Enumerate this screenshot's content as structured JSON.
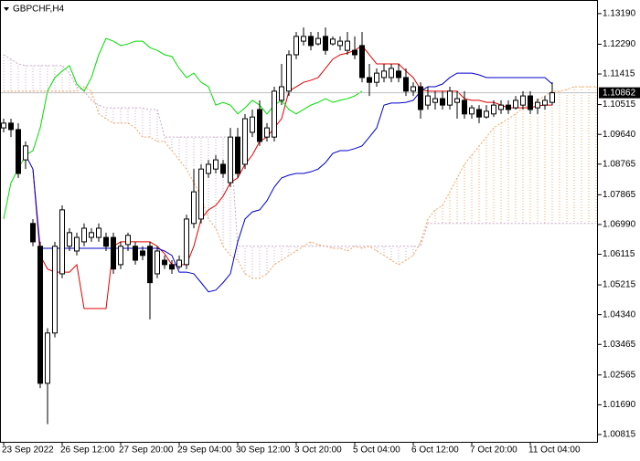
{
  "chart_data": {
    "type": "candlestick",
    "title": "GBPCHF,H4",
    "categories": [
      "23 Sep 2022",
      null,
      null,
      null,
      null,
      null,
      null,
      null,
      "26 Sep 12:00",
      null,
      null,
      null,
      null,
      null,
      null,
      null,
      "27 Sep 20:00",
      null,
      null,
      null,
      null,
      null,
      null,
      null,
      "29 Sep 04:00",
      null,
      null,
      null,
      null,
      null,
      null,
      null,
      "30 Sep 12:00",
      null,
      null,
      null,
      null,
      null,
      null,
      null,
      "3 Oct 20:00",
      null,
      null,
      null,
      null,
      null,
      null,
      null,
      "5 Oct 04:00",
      null,
      null,
      null,
      null,
      null,
      null,
      null,
      "6 Oct 12:00",
      null,
      null,
      null,
      null,
      null,
      null,
      null,
      "7 Oct 20:00",
      null,
      null,
      null,
      null,
      null,
      null,
      null,
      "11 Oct 04:00",
      null,
      null,
      null,
      null,
      null,
      null,
      null,
      null,
      null
    ],
    "open": [
      1.0983,
      1.0997,
      1.0978,
      1.0889,
      1.0702,
      1.0635,
      1.0232,
      1.038,
      1.0554,
      1.0635,
      1.0621,
      1.0648,
      1.0661,
      1.0661,
      1.0661,
      1.0661,
      1.0581,
      1.064,
      1.0635,
      1.0621,
      1.0635,
      1.0554,
      1.0594,
      1.0581,
      1.0575,
      1.0581,
      1.0702,
      1.0715,
      1.0849,
      1.0862,
      1.0876,
      1.0822,
      1.0956,
      1.0876,
      1.097,
      1.1037,
      1.0956,
      1.0956,
      1.1064,
      1.1091,
      1.1198,
      1.1238,
      1.1252,
      1.123,
      1.1252,
      1.123,
      1.1225,
      1.1211,
      1.1211,
      1.1225,
      1.1131,
      1.1117,
      1.1131,
      1.1131,
      1.115,
      1.1131,
      1.1091,
      1.1104,
      1.105,
      1.1058,
      1.1069,
      1.105,
      1.1058,
      1.1064,
      1.1024,
      1.1037,
      1.1015,
      1.1024,
      1.1037,
      1.105,
      1.1042,
      1.105,
      1.1077,
      1.1042,
      1.105,
      1.1058,
      null,
      null,
      null,
      null,
      null,
      null
    ],
    "high": [
      1.101,
      1.101,
      1.0997,
      1.0943,
      1.0715,
      1.0648,
      1.0394,
      1.0648,
      1.0755,
      1.0688,
      1.0675,
      1.0702,
      1.0688,
      1.0702,
      1.0675,
      1.0675,
      1.0648,
      1.0675,
      1.0648,
      1.0635,
      1.0648,
      1.0635,
      1.0608,
      1.0594,
      1.0608,
      1.0728,
      1.0862,
      1.0876,
      1.0889,
      1.0903,
      1.0889,
      1.0983,
      1.0983,
      1.1024,
      1.1037,
      1.1064,
      1.0997,
      1.1104,
      1.1171,
      1.1211,
      1.1265,
      1.1278,
      1.1265,
      1.1265,
      1.1278,
      1.1252,
      1.1252,
      1.1265,
      1.1252,
      1.1265,
      1.1171,
      1.1158,
      1.1171,
      1.1171,
      1.1171,
      1.1158,
      1.1117,
      1.1117,
      1.1104,
      1.1091,
      1.1091,
      1.1104,
      1.1091,
      1.1091,
      1.105,
      1.105,
      1.105,
      1.1064,
      1.1064,
      1.1064,
      1.1077,
      1.1091,
      1.1091,
      1.1069,
      1.1077,
      1.1117,
      null,
      null,
      null,
      null,
      null,
      null
    ],
    "low": [
      1.097,
      1.0956,
      1.0836,
      1.0862,
      1.0635,
      1.0218,
      1.0112,
      1.0367,
      1.0541,
      1.0621,
      1.0608,
      1.0635,
      1.0648,
      1.0648,
      1.0621,
      1.0554,
      1.0568,
      1.0621,
      1.0581,
      1.0594,
      1.042,
      1.0541,
      1.0568,
      1.0554,
      1.0568,
      1.0568,
      1.0688,
      1.0702,
      1.0836,
      1.0849,
      1.0836,
      1.0809,
      1.0836,
      1.0862,
      1.0956,
      1.093,
      1.0943,
      1.0943,
      1.105,
      1.1077,
      1.1185,
      1.1225,
      1.1211,
      1.1225,
      1.1198,
      1.1225,
      1.1211,
      1.1198,
      1.1185,
      1.1117,
      1.1077,
      1.1104,
      1.1117,
      1.1117,
      1.1117,
      1.1077,
      1.1077,
      1.101,
      1.1037,
      1.1037,
      1.1037,
      1.1037,
      1.101,
      1.101,
      1.101,
      1.0997,
      1.101,
      1.1015,
      1.1024,
      1.1024,
      1.1037,
      1.1037,
      1.1024,
      1.1024,
      1.1037,
      1.105,
      null,
      null,
      null,
      null,
      null,
      null
    ],
    "close": [
      1.0997,
      1.0978,
      1.0849,
      1.093,
      1.0648,
      1.0232,
      1.038,
      1.0635,
      1.0742,
      1.0675,
      1.0661,
      1.0688,
      1.0675,
      1.0688,
      1.0635,
      1.0568,
      1.0635,
      1.0667,
      1.0594,
      1.0608,
      1.0528,
      1.0621,
      1.0581,
      1.0568,
      1.0594,
      1.0715,
      1.0795,
      1.0862,
      1.0876,
      1.0889,
      1.0849,
      1.0956,
      1.0849,
      1.101,
      1.1015,
      1.0943,
      1.0983,
      1.1091,
      1.1104,
      1.1198,
      1.1252,
      1.1252,
      1.1225,
      1.1246,
      1.1211,
      1.1244,
      1.1238,
      1.1238,
      1.1198,
      1.1131,
      1.1117,
      1.1144,
      1.115,
      1.1158,
      1.1131,
      1.1091,
      1.1104,
      1.1037,
      1.1077,
      1.1069,
      1.105,
      1.1091,
      1.1069,
      1.1024,
      1.1042,
      1.1015,
      1.1032,
      1.105,
      1.105,
      1.1037,
      1.1064,
      1.1077,
      1.1037,
      1.1058,
      1.1064,
      1.10862,
      null,
      null,
      null,
      null,
      null,
      null
    ],
    "up_color": "#ffffff",
    "down_color": "#000000",
    "series": [
      {
        "color": "#e00000",
        "values": [
          null,
          null,
          null,
          null,
          1.0862,
          1.0608,
          1.0568,
          1.0559,
          1.0559,
          1.0559,
          1.0581,
          1.0452,
          1.0452,
          1.0452,
          1.0452,
          1.0635,
          1.0648,
          1.0648,
          1.0648,
          1.0648,
          1.0648,
          1.0635,
          1.0613,
          1.0581,
          1.0581,
          1.0581,
          1.0635,
          1.0715,
          1.0742,
          1.0755,
          1.0782,
          1.0822,
          1.0836,
          1.0876,
          1.0903,
          1.0943,
          1.0956,
          1.0983,
          1.101,
          1.1091,
          1.1104,
          1.1117,
          1.1123,
          1.1131,
          1.1158,
          1.1185,
          1.1198,
          1.1203,
          1.1211,
          1.1225,
          1.1198,
          1.1171,
          1.1171,
          1.1171,
          1.1171,
          1.115,
          1.1131,
          1.1096,
          1.1091,
          1.1091,
          1.1091,
          1.1091,
          1.1091,
          1.1069,
          1.1064,
          1.1064,
          1.1058,
          1.1058,
          1.105,
          1.1042,
          1.1042,
          1.1042,
          1.1042,
          1.1048,
          1.105,
          1.105,
          null,
          null,
          null,
          null,
          null,
          null
        ]
      },
      {
        "color": "#0000cc",
        "values": [
          null,
          null,
          null,
          1.0903,
          1.0862,
          1.0629,
          1.0629,
          1.0629,
          1.0629,
          1.0629,
          1.0629,
          1.0629,
          1.0629,
          1.0629,
          1.0629,
          1.0629,
          1.0629,
          1.0629,
          1.0629,
          1.0629,
          1.0629,
          1.0629,
          1.0621,
          1.0608,
          1.0559,
          1.0559,
          1.0554,
          1.0528,
          1.0501,
          1.0506,
          1.0528,
          1.0554,
          1.0648,
          1.0715,
          1.0736,
          1.0742,
          1.0769,
          1.0809,
          1.0836,
          1.0844,
          1.0849,
          1.0849,
          1.0854,
          1.0862,
          1.0881,
          1.0908,
          1.0916,
          1.0916,
          1.0922,
          1.093,
          1.0956,
          1.0983,
          1.105,
          1.1056,
          1.1056,
          1.1058,
          1.1064,
          1.1091,
          1.1104,
          1.1104,
          1.1112,
          1.1131,
          1.1144,
          1.1144,
          1.1144,
          1.1139,
          1.1131,
          1.1131,
          1.1131,
          1.1131,
          1.1131,
          1.1131,
          1.1131,
          1.1131,
          1.1131,
          1.1112,
          null,
          null,
          null,
          null,
          null,
          null
        ]
      },
      {
        "color": "#00dd00",
        "values": [
          1.0715,
          1.0822,
          1.0862,
          1.0903,
          1.0916,
          1.0983,
          1.1091,
          1.1131,
          1.115,
          1.1166,
          1.1112,
          1.1091,
          1.1131,
          1.1198,
          1.1246,
          1.1238,
          1.1225,
          1.123,
          1.1238,
          1.1238,
          1.1219,
          1.1211,
          1.1198,
          1.1193,
          1.1158,
          1.1131,
          1.1144,
          1.1117,
          1.1104,
          1.105,
          1.1058,
          1.105,
          1.1024,
          1.1042,
          1.1064,
          1.105,
          1.1024,
          1.105,
          1.1064,
          1.1037,
          1.1024,
          1.1037,
          1.105,
          1.1058,
          1.1069,
          1.1058,
          1.1064,
          1.1069,
          1.1077,
          1.1091,
          null,
          null,
          null,
          null,
          null,
          null,
          null,
          null,
          null,
          null,
          null,
          null,
          null,
          null,
          null,
          null,
          null,
          null,
          null,
          null,
          null,
          null,
          null,
          null,
          null,
          null,
          null,
          null,
          null,
          null,
          null,
          null
        ]
      }
    ],
    "cloud": {
      "span_a": {
        "color": "#f4a460",
        "values": [
          1.1091,
          1.1091,
          1.1091,
          1.1091,
          1.1091,
          1.1091,
          1.1091,
          1.1091,
          1.1091,
          1.1091,
          1.1091,
          1.1104,
          1.1091,
          1.1024,
          1.101,
          1.0997,
          1.0997,
          1.0997,
          1.0983,
          1.0956,
          1.0956,
          1.0943,
          1.0943,
          1.0916,
          1.0889,
          1.0862,
          1.0822,
          1.0782,
          1.0715,
          1.0688,
          1.0635,
          1.0608,
          1.0594,
          1.0554,
          1.0541,
          1.0541,
          1.0554,
          1.0581,
          1.0594,
          1.0608,
          1.0621,
          1.0635,
          1.0648,
          1.064,
          1.0635,
          1.0629,
          1.0629,
          1.0621,
          1.0635,
          1.0629,
          1.0635,
          1.0621,
          1.0608,
          1.0594,
          1.0581,
          1.0594,
          1.0608,
          1.0648,
          1.0715,
          1.0742,
          1.0755,
          1.0795,
          1.0836,
          1.0876,
          1.0903,
          1.093,
          1.0956,
          1.0983,
          1.0997,
          1.101,
          1.1024,
          1.1042,
          1.105,
          1.1064,
          1.1077,
          1.1091,
          1.1091,
          1.1096,
          1.1104,
          1.1104,
          1.1104,
          1.1104
        ]
      },
      "span_b": {
        "color": "#c8a8c8",
        "values": [
          1.1198,
          1.1185,
          1.1171,
          1.1166,
          1.1166,
          1.1166,
          1.1166,
          1.1166,
          1.1166,
          1.1144,
          1.1104,
          1.1091,
          1.1064,
          1.105,
          1.1042,
          1.1042,
          1.1042,
          1.1042,
          1.1042,
          1.1042,
          1.1037,
          1.1037,
          1.0956,
          1.0956,
          1.0956,
          1.0956,
          1.0956,
          1.0956,
          1.0956,
          1.0956,
          1.0956,
          1.0956,
          1.0635,
          1.0635,
          1.0635,
          1.0635,
          1.0635,
          1.0635,
          1.0635,
          1.0635,
          1.0635,
          1.0635,
          1.0635,
          1.0635,
          1.0635,
          1.0635,
          1.0635,
          1.0635,
          1.0635,
          1.0635,
          1.0635,
          1.0635,
          1.0635,
          1.0635,
          1.0635,
          1.0635,
          1.0635,
          1.0635,
          1.0702,
          1.0702,
          1.0702,
          1.0702,
          1.0702,
          1.0702,
          1.0702,
          1.0702,
          1.0702,
          1.0702,
          1.0702,
          1.0702,
          1.0702,
          1.0702,
          1.0702,
          1.0702,
          1.0702,
          1.0702,
          1.0702,
          1.0702,
          1.0702,
          1.0702,
          1.0702,
          1.0702
        ]
      }
    },
    "current_price_line": true,
    "ylim": [
      1.006,
      1.1359
    ],
    "yticks": [
      {
        "value": 1.1319,
        "label": "1.13190"
      },
      {
        "value": 1.1229,
        "label": "1.12290"
      },
      1.11415,
      1.10515,
      {
        "value": 1.0964,
        "label": "1.09640"
      },
      1.08765,
      1.07865,
      {
        "value": 1.0699,
        "label": "1.06990"
      },
      1.06115,
      1.05215,
      {
        "value": 1.0434,
        "label": "1.04340"
      },
      1.03465,
      1.02565,
      {
        "value": 1.0169,
        "label": "1.01690"
      },
      1.00815
    ],
    "grid": false
  }
}
